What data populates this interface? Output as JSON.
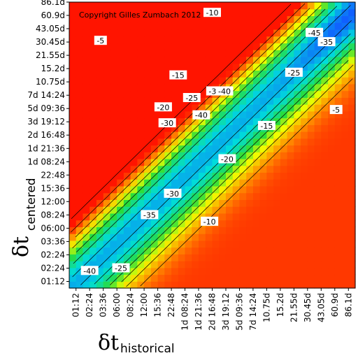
{
  "chart_data": {
    "type": "heatmap",
    "subtype": "filled-contour",
    "annotation": "Copyright Gilles Zumbach 2012",
    "xlabel": {
      "symbol": "δt",
      "subscript": "historical"
    },
    "ylabel": {
      "symbol": "δt",
      "subscript": "centered"
    },
    "x_ticks": [
      "01:12",
      "02:24",
      "03:36",
      "06:00",
      "08:24",
      "12:00",
      "15:36",
      "22:48",
      "1d 08:24",
      "1d 21:36",
      "2d 16:48",
      "3d 19:12",
      "5d 09:36",
      "7d 14:24",
      "10.75d",
      "15.2d",
      "21.55d",
      "30.45d",
      "43.05d",
      "60.9d",
      "86.1d"
    ],
    "y_ticks": [
      "01:12",
      "02:24",
      "02:24",
      "03:36",
      "06:00",
      "08:24",
      "12:00",
      "15:36",
      "22:48",
      "1d 08:24",
      "1d 21:36",
      "2d 16:48",
      "3d 19:12",
      "5d 09:36",
      "7d 14:24",
      "10.75d",
      "15.2d",
      "21.55d",
      "30.45d",
      "43.05d",
      "60.9d",
      "86.1d"
    ],
    "contour_levels": [
      -5,
      -10,
      -15,
      -20,
      -25,
      -30,
      -35,
      -40,
      -45
    ],
    "color_scale": {
      "low": "#1060ff",
      "mid": "#f0ff00",
      "high": "#ff0000",
      "max": "#e80000"
    },
    "contour_labels": [
      {
        "text": "-5",
        "x": 1.8,
        "y": 18.1
      },
      {
        "text": "-10",
        "x": 10.0,
        "y": 20.2
      },
      {
        "text": "-45",
        "x": 17.5,
        "y": 18.7
      },
      {
        "text": "-35",
        "x": 18.4,
        "y": 18.0
      },
      {
        "text": "-25",
        "x": 16.0,
        "y": 15.7
      },
      {
        "text": "-15",
        "x": 7.5,
        "y": 15.5
      },
      {
        "text": "-35",
        "x": 10.2,
        "y": 14.3
      },
      {
        "text": "-40",
        "x": 10.9,
        "y": 14.3
      },
      {
        "text": "-25",
        "x": 8.5,
        "y": 13.8
      },
      {
        "text": "-20",
        "x": 6.4,
        "y": 13.1
      },
      {
        "text": "-40",
        "x": 9.2,
        "y": 12.5
      },
      {
        "text": "-30",
        "x": 6.7,
        "y": 11.9
      },
      {
        "text": "-15",
        "x": 14.0,
        "y": 11.7
      },
      {
        "text": "-5",
        "x": 19.1,
        "y": 12.9
      },
      {
        "text": "-20",
        "x": 11.1,
        "y": 9.2
      },
      {
        "text": "-30",
        "x": 7.1,
        "y": 6.6
      },
      {
        "text": "-35",
        "x": 5.4,
        "y": 5.0
      },
      {
        "text": "-10",
        "x": 9.8,
        "y": 4.5
      },
      {
        "text": "-40",
        "x": 1.0,
        "y": 0.8
      },
      {
        "text": "-25",
        "x": 3.3,
        "y": 1.0
      }
    ]
  }
}
